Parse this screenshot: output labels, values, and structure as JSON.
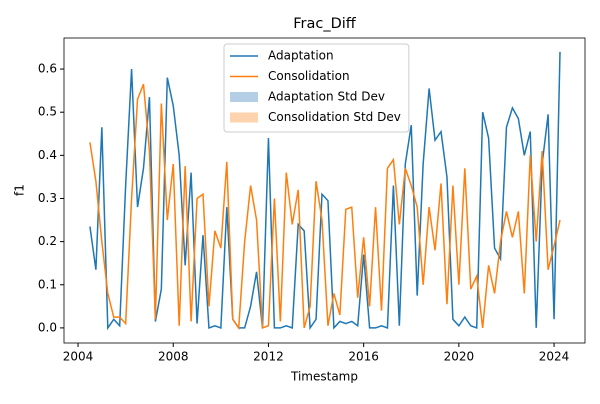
{
  "chart_data": {
    "type": "line",
    "title": "Frac_Diff",
    "x_label": "Timestamp",
    "y_label": "f1",
    "x": [
      2004.5,
      2004.75,
      2005,
      2005.25,
      2005.5,
      2005.75,
      2006,
      2006.25,
      2006.5,
      2006.75,
      2007,
      2007.25,
      2007.5,
      2007.75,
      2008,
      2008.25,
      2008.5,
      2008.75,
      2009,
      2009.25,
      2009.5,
      2009.75,
      2010,
      2010.25,
      2010.5,
      2010.75,
      2011,
      2011.25,
      2011.5,
      2011.75,
      2012,
      2012.25,
      2012.5,
      2012.75,
      2013,
      2013.25,
      2013.5,
      2013.75,
      2014,
      2014.25,
      2014.5,
      2014.75,
      2015,
      2015.25,
      2015.5,
      2015.75,
      2016,
      2016.25,
      2016.5,
      2016.75,
      2017,
      2017.25,
      2017.5,
      2017.75,
      2018,
      2018.25,
      2018.5,
      2018.75,
      2019,
      2019.25,
      2019.5,
      2019.75,
      2020,
      2020.25,
      2020.5,
      2020.75,
      2021,
      2021.25,
      2021.5,
      2021.75,
      2022,
      2022.25,
      2022.5,
      2022.75,
      2023,
      2023.25,
      2023.5,
      2023.75,
      2024,
      2024.25
    ],
    "series": [
      {
        "name": "Adaptation",
        "color": "#1f77b4",
        "values": [
          0.235,
          0.135,
          0.465,
          0.0,
          0.02,
          0.005,
          0.33,
          0.6,
          0.28,
          0.37,
          0.535,
          0.015,
          0.09,
          0.58,
          0.515,
          0.4,
          0.145,
          0.36,
          0.01,
          0.215,
          0.0,
          0.005,
          0.0,
          0.28,
          0.02,
          0.0,
          0.0,
          0.05,
          0.13,
          0.0,
          0.44,
          0.0,
          0.0,
          0.005,
          0.0,
          0.24,
          0.225,
          0.0,
          0.02,
          0.31,
          0.295,
          0.0,
          0.015,
          0.01,
          0.015,
          0.005,
          0.17,
          0.0,
          0.0,
          0.005,
          0.0,
          0.33,
          0.005,
          0.38,
          0.47,
          0.075,
          0.38,
          0.555,
          0.435,
          0.455,
          0.35,
          0.02,
          0.005,
          0.025,
          0.005,
          0.0,
          0.5,
          0.44,
          0.185,
          0.16,
          0.465,
          0.51,
          0.485,
          0.4,
          0.455,
          0.0,
          0.38,
          0.495,
          0.02,
          0.64
        ]
      },
      {
        "name": "Consolidation",
        "color": "#ff7f0e",
        "values": [
          0.43,
          0.34,
          0.2,
          0.08,
          0.025,
          0.025,
          0.01,
          0.3,
          0.53,
          0.565,
          0.41,
          0.02,
          0.52,
          0.25,
          0.38,
          0.005,
          0.375,
          0.015,
          0.3,
          0.31,
          0.05,
          0.225,
          0.185,
          0.385,
          0.02,
          0.0,
          0.2,
          0.33,
          0.25,
          0.0,
          0.005,
          0.3,
          0.015,
          0.36,
          0.24,
          0.32,
          0.0,
          0.05,
          0.34,
          0.25,
          0.005,
          0.08,
          0.03,
          0.275,
          0.28,
          0.07,
          0.21,
          0.05,
          0.28,
          0.04,
          0.37,
          0.39,
          0.24,
          0.37,
          0.33,
          0.28,
          0.1,
          0.28,
          0.18,
          0.335,
          0.055,
          0.33,
          0.1,
          0.37,
          0.09,
          0.12,
          0.0,
          0.145,
          0.08,
          0.2,
          0.27,
          0.21,
          0.27,
          0.08,
          0.4,
          0.2,
          0.41,
          0.135,
          0.19,
          0.25
        ]
      }
    ],
    "std_dev_legend": [
      {
        "name": "Adaptation Std Dev",
        "color": "#b4cfe5"
      },
      {
        "name": "Consolidation Std Dev",
        "color": "#ffd3ae"
      }
    ],
    "xlim": [
      2003.41,
      2025.3
    ],
    "xticks": [
      2004,
      2008,
      2012,
      2016,
      2020,
      2024
    ],
    "ylim": [
      -0.035,
      0.672
    ],
    "yticks": [
      {
        "value": 0,
        "label": "0.0"
      },
      0.1,
      0.2,
      0.3,
      0.4,
      0.5,
      0.6
    ],
    "legend": "upper center"
  }
}
